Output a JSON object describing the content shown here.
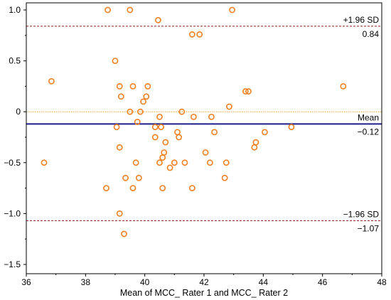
{
  "chart_data": {
    "type": "scatter",
    "title": "",
    "xlabel": "Mean  of  MCC_ Rater 1  and MCC_ Rater 2",
    "ylabel": "",
    "xlim": [
      36,
      48
    ],
    "ylim": [
      -1.55,
      1.02
    ],
    "x_ticks": [
      "36",
      "38",
      "40",
      "42",
      "44",
      "46",
      "48"
    ],
    "y_ticks": [
      "1.0",
      "0.5",
      "0",
      "-0.5",
      "-1.0",
      "-1.5"
    ],
    "grid": false,
    "colors": {
      "points": "#f08020",
      "mean_line": "#1c1c8c",
      "limit_lines": "#8b1a1a",
      "zero_line": "#f0a030"
    },
    "reference_lines": {
      "upper": {
        "value": 0.84,
        "label_top": "+1.96 SD",
        "label_bottom": "0.84"
      },
      "mean": {
        "value": -0.12,
        "label_top": "Mean",
        "label_bottom": "−0.12"
      },
      "lower": {
        "value": -1.07,
        "label_top": "−1.96 SD",
        "label_bottom": "−1.07"
      },
      "zero": {
        "value": 0
      }
    },
    "points": [
      {
        "x": 38.75,
        "y": 1.0
      },
      {
        "x": 39.5,
        "y": 1.0
      },
      {
        "x": 40.45,
        "y": 0.9
      },
      {
        "x": 42.95,
        "y": 1.0
      },
      {
        "x": 41.6,
        "y": 0.76
      },
      {
        "x": 41.85,
        "y": 0.76
      },
      {
        "x": 39.0,
        "y": 0.5
      },
      {
        "x": 36.85,
        "y": 0.3
      },
      {
        "x": 39.15,
        "y": 0.25
      },
      {
        "x": 39.6,
        "y": 0.25
      },
      {
        "x": 40.1,
        "y": 0.25
      },
      {
        "x": 46.7,
        "y": 0.25
      },
      {
        "x": 43.4,
        "y": 0.2
      },
      {
        "x": 43.5,
        "y": 0.2
      },
      {
        "x": 39.2,
        "y": 0.15
      },
      {
        "x": 40.05,
        "y": 0.15
      },
      {
        "x": 39.95,
        "y": 0.1
      },
      {
        "x": 42.85,
        "y": 0.05
      },
      {
        "x": 39.5,
        "y": 0.0
      },
      {
        "x": 39.85,
        "y": 0.0
      },
      {
        "x": 41.25,
        "y": 0.0
      },
      {
        "x": 40.5,
        "y": -0.05
      },
      {
        "x": 41.65,
        "y": -0.05
      },
      {
        "x": 42.25,
        "y": -0.05
      },
      {
        "x": 39.75,
        "y": -0.1
      },
      {
        "x": 39.05,
        "y": -0.15
      },
      {
        "x": 40.35,
        "y": -0.15
      },
      {
        "x": 40.55,
        "y": -0.15
      },
      {
        "x": 44.95,
        "y": -0.15
      },
      {
        "x": 41.1,
        "y": -0.2
      },
      {
        "x": 42.35,
        "y": -0.2
      },
      {
        "x": 44.05,
        "y": -0.2
      },
      {
        "x": 40.35,
        "y": -0.25
      },
      {
        "x": 41.15,
        "y": -0.25
      },
      {
        "x": 40.7,
        "y": -0.3
      },
      {
        "x": 43.75,
        "y": -0.3
      },
      {
        "x": 39.15,
        "y": -0.35
      },
      {
        "x": 43.7,
        "y": -0.35
      },
      {
        "x": 40.65,
        "y": -0.4
      },
      {
        "x": 42.05,
        "y": -0.4
      },
      {
        "x": 40.6,
        "y": -0.45
      },
      {
        "x": 36.6,
        "y": -0.5
      },
      {
        "x": 39.7,
        "y": -0.5
      },
      {
        "x": 40.5,
        "y": -0.5
      },
      {
        "x": 41.0,
        "y": -0.5
      },
      {
        "x": 41.35,
        "y": -0.5
      },
      {
        "x": 42.2,
        "y": -0.5
      },
      {
        "x": 42.75,
        "y": -0.5
      },
      {
        "x": 40.85,
        "y": -0.55
      },
      {
        "x": 39.35,
        "y": -0.65
      },
      {
        "x": 39.8,
        "y": -0.65
      },
      {
        "x": 42.7,
        "y": -0.65
      },
      {
        "x": 38.7,
        "y": -0.75
      },
      {
        "x": 39.6,
        "y": -0.75
      },
      {
        "x": 40.6,
        "y": -0.75
      },
      {
        "x": 41.6,
        "y": -0.75
      },
      {
        "x": 39.15,
        "y": -1.0
      },
      {
        "x": 39.3,
        "y": -1.2
      }
    ]
  }
}
